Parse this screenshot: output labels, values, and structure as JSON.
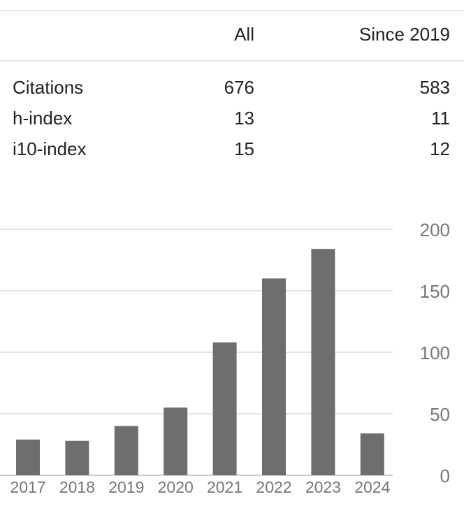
{
  "table": {
    "headers": {
      "all": "All",
      "since": "Since 2019"
    },
    "rows": [
      {
        "label": "Citations",
        "all": "676",
        "since": "583"
      },
      {
        "label": "h-index",
        "all": "13",
        "since": "11"
      },
      {
        "label": "i10-index",
        "all": "15",
        "since": "12"
      }
    ]
  },
  "chart_data": {
    "type": "bar",
    "categories": [
      "2017",
      "2018",
      "2019",
      "2020",
      "2021",
      "2022",
      "2023",
      "2024"
    ],
    "values": [
      29,
      28,
      40,
      55,
      108,
      160,
      184,
      34
    ],
    "ylim": [
      0,
      200
    ],
    "yticks": [
      "0",
      "50",
      "100",
      "150",
      "200"
    ],
    "bar_color": "#6e6e6e",
    "grid": true,
    "y_axis_side": "right"
  }
}
